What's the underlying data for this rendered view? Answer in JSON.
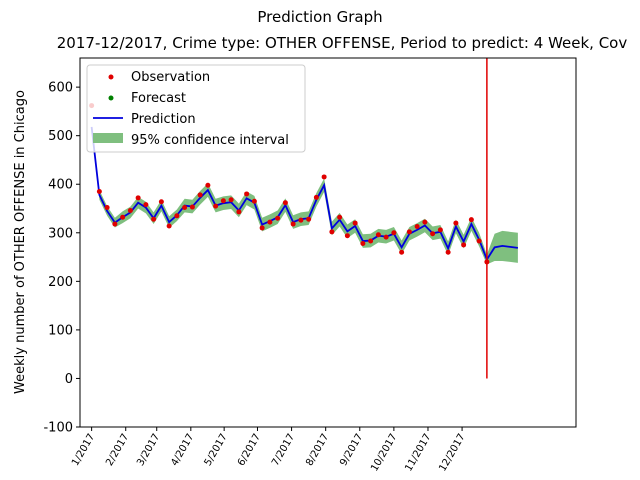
{
  "chart_data": {
    "type": "line",
    "suptitle": "Prediction Graph",
    "title": "2017-12/2017,  Crime type: OTHER OFFENSE,  Period to predict: 4 Week,  Cov",
    "xlabel": "",
    "ylabel": "Weekly number of OTHER OFFENSE in Chicago",
    "ylim": [
      -100,
      660
    ],
    "yticks": [
      -100,
      0,
      100,
      200,
      300,
      400,
      500,
      600
    ],
    "xticks": [
      {
        "label": "1/2017",
        "week": 0
      },
      {
        "label": "2/2017",
        "week": 4.4
      },
      {
        "label": "3/2017",
        "week": 8.4
      },
      {
        "label": "4/2017",
        "week": 12.8
      },
      {
        "label": "5/2017",
        "week": 17.1
      },
      {
        "label": "6/2017",
        "week": 21.4
      },
      {
        "label": "7/2017",
        "week": 25.8
      },
      {
        "label": "8/2017",
        "week": 30.2
      },
      {
        "label": "9/2017",
        "week": 34.6
      },
      {
        "label": "10/2017",
        "week": 39
      },
      {
        "label": "11/2017",
        "week": 43.4
      },
      {
        "label": "12/2017",
        "week": 47.8
      }
    ],
    "xlim": [
      -1.5,
      62.5
    ],
    "legend_position": "top-left",
    "legend": [
      "Observation",
      "Forecast",
      "Prediction",
      "95% confidence interval"
    ],
    "colors": {
      "observation": "#e00000",
      "forecast": "#008000",
      "prediction": "#0000dd",
      "ci": "#7fbf7f",
      "divider": "#e00000"
    },
    "observations": [
      562,
      385,
      352,
      318,
      332,
      346,
      372,
      358,
      328,
      364,
      314,
      335,
      352,
      353,
      378,
      398,
      355,
      366,
      368,
      343,
      380,
      365,
      310,
      322,
      330,
      362,
      318,
      326,
      328,
      373,
      415,
      302,
      332,
      294,
      320,
      278,
      283,
      296,
      291,
      300,
      260,
      302,
      313,
      322,
      298,
      306,
      260,
      320,
      275,
      327,
      283,
      240
    ],
    "prediction": [
      518,
      378,
      345,
      321,
      332,
      342,
      362,
      352,
      330,
      356,
      322,
      336,
      356,
      354,
      372,
      388,
      356,
      361,
      363,
      346,
      371,
      362,
      317,
      324,
      332,
      357,
      322,
      328,
      330,
      368,
      398,
      309,
      327,
      303,
      314,
      283,
      284,
      294,
      292,
      298,
      270,
      298,
      306,
      315,
      299,
      302,
      268,
      313,
      282,
      318,
      286,
      245,
      270,
      273,
      271,
      269
    ],
    "ci_width": [
      0,
      10,
      10,
      10,
      12,
      12,
      12,
      12,
      12,
      12,
      12,
      12,
      14,
      14,
      14,
      14,
      14,
      14,
      14,
      14,
      14,
      14,
      14,
      14,
      14,
      14,
      14,
      14,
      14,
      14,
      14,
      14,
      14,
      14,
      14,
      14,
      14,
      14,
      14,
      14,
      14,
      14,
      14,
      14,
      14,
      14,
      14,
      14,
      14,
      14,
      14,
      10,
      28,
      31,
      31,
      31
    ],
    "divider_week": 51
  }
}
